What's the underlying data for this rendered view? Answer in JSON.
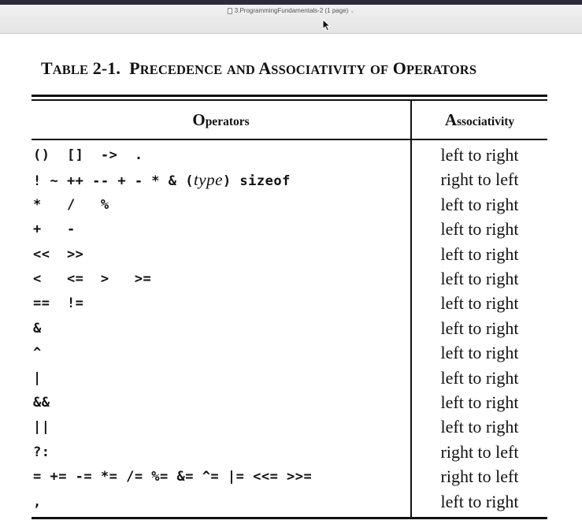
{
  "window": {
    "title": "3.ProgrammingFundamentals-2 (1 page)"
  },
  "table": {
    "title_number": "Table 2-1.",
    "title_text": "Precedence and Associativity of Operators",
    "headers": {
      "operators": "Operators",
      "associativity": "Associativity"
    },
    "rows": [
      {
        "operators": "()  []  ->  .",
        "associativity": "left to right"
      },
      {
        "operators_parts": [
          "! ~ ++ -- + - * & (",
          "type",
          ") sizeof"
        ],
        "associativity": "right to left"
      },
      {
        "operators": "*   /   %",
        "associativity": "left to right"
      },
      {
        "operators": "+   -",
        "associativity": "left to right"
      },
      {
        "operators": "<<  >>",
        "associativity": "left to right"
      },
      {
        "operators": "<   <=  >   >=",
        "associativity": "left to right"
      },
      {
        "operators": "==  !=",
        "associativity": "left to right"
      },
      {
        "operators": "&",
        "associativity": "left to right"
      },
      {
        "operators": "^",
        "associativity": "left to right"
      },
      {
        "operators": "|",
        "associativity": "left to right"
      },
      {
        "operators": "&&",
        "associativity": "left to right"
      },
      {
        "operators": "||",
        "associativity": "left to right"
      },
      {
        "operators": "?:",
        "associativity": "right to left"
      },
      {
        "operators": "= += -= *= /= %= &= ^= |= <<= >>=",
        "associativity": "right to left"
      },
      {
        "operators": ",",
        "associativity": "left to right"
      }
    ]
  }
}
